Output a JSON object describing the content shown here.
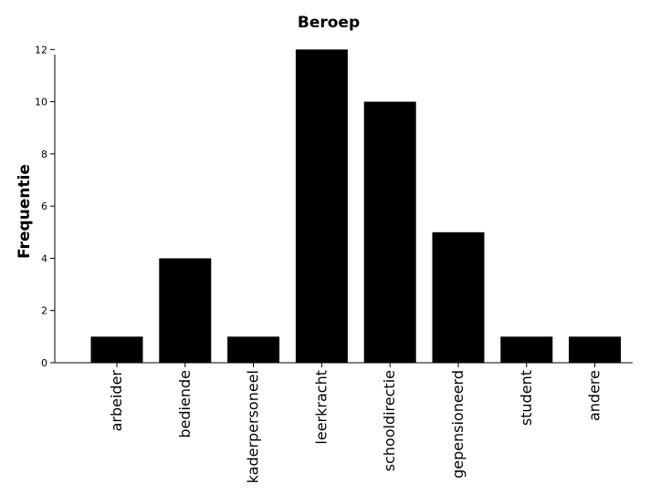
{
  "chart_data": {
    "type": "bar",
    "title": "Beroep",
    "xlabel": "",
    "ylabel": "Frequentie",
    "categories": [
      "arbeider",
      "bediende",
      "kaderpersoneel",
      "leerkracht",
      "schooldirectie",
      "gepensioneerd",
      "student",
      "andere"
    ],
    "values": [
      1,
      4,
      1,
      12,
      10,
      5,
      1,
      1
    ],
    "ylim": [
      0,
      12.5
    ],
    "yticks": [
      0,
      2,
      4,
      6,
      8,
      10,
      12
    ],
    "bar_color": "#000000",
    "grid": false
  }
}
